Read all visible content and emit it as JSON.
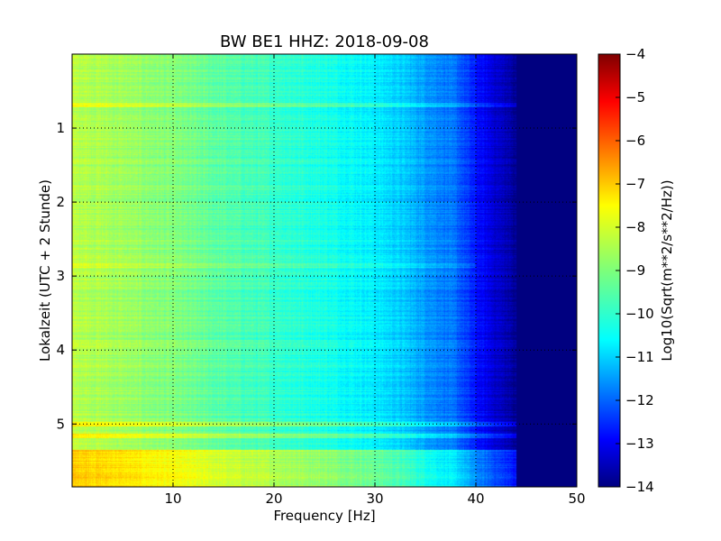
{
  "chart_data": {
    "type": "heatmap",
    "title": "BW BE1 HHZ: 2018-09-08",
    "xlabel": "Frequency [Hz]",
    "ylabel": "Lokalzeit (UTC + 2 Stunde)",
    "xlim": [
      0,
      50
    ],
    "ylim": [
      5.85,
      0
    ],
    "x_ticks": [
      10,
      20,
      30,
      40,
      50
    ],
    "y_ticks": [
      1,
      2,
      3,
      4,
      5
    ],
    "grid": true,
    "colormap": "jet",
    "colorbar": {
      "label": "Log10(Sqrt(m**2/s**2/Hz))",
      "range": [
        -14,
        -4
      ],
      "ticks": [
        -4,
        -5,
        -6,
        -7,
        -8,
        -9,
        -10,
        -11,
        -12,
        -13,
        -14
      ]
    },
    "spectral_profile": {
      "frequency_hz": [
        0,
        5,
        10,
        15,
        20,
        25,
        30,
        33,
        35,
        38,
        40,
        42,
        44,
        46,
        50
      ],
      "log_amplitude": [
        -8.4,
        -8.7,
        -9.0,
        -9.4,
        -9.7,
        -10.0,
        -10.4,
        -10.8,
        -11.2,
        -11.7,
        -12.6,
        -13.2,
        -13.8,
        -14,
        -14
      ]
    },
    "time_features": [
      {
        "time_h": 0.68,
        "type": "band",
        "delta": 0.6,
        "extent_hz": 45
      },
      {
        "time_h": 2.85,
        "type": "band",
        "delta": 0.4,
        "extent_hz": 40
      },
      {
        "time_h": 5.0,
        "type": "band",
        "delta": 0.9,
        "extent_hz": 45
      },
      {
        "time_h": 5.15,
        "type": "band",
        "delta": 0.9,
        "extent_hz": 45
      },
      {
        "time_h": 5.6,
        "type": "band",
        "delta": 1.2,
        "extent_hz": 45
      }
    ]
  }
}
